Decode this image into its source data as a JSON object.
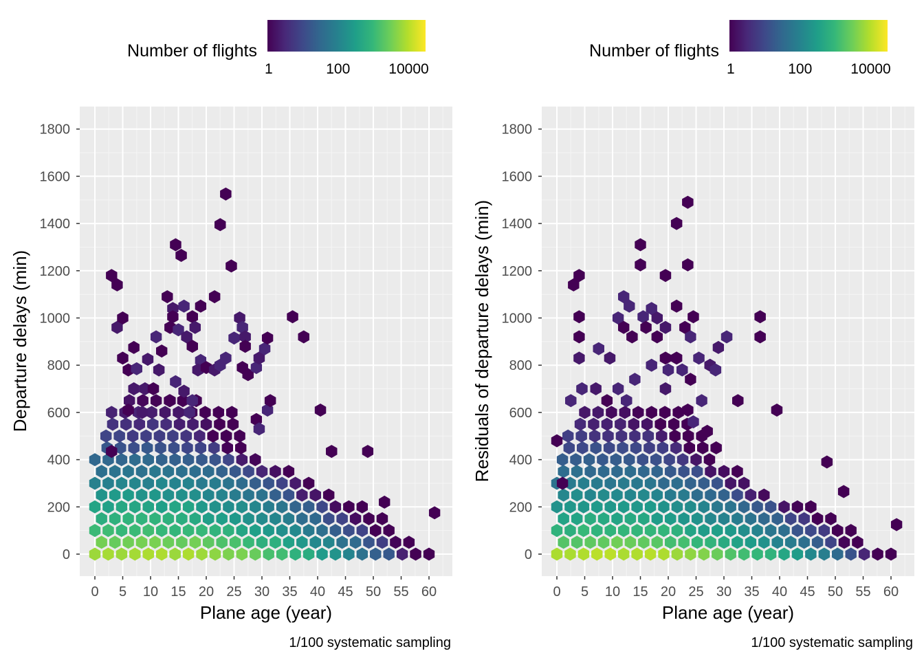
{
  "colors": {
    "panel_background": "#ebebeb",
    "grid_major": "#ffffff",
    "tick_text": "#4d4d4d",
    "viridis": [
      "#440154",
      "#482878",
      "#3e4989",
      "#31688e",
      "#26828e",
      "#1f9e89",
      "#35b779",
      "#6ece58",
      "#b5de2b",
      "#fde725"
    ]
  },
  "chart_data": [
    {
      "type": "heatmap",
      "subtype": "hexbin",
      "xlabel": "Plane age (year)",
      "ylabel": "Departure delays (min)",
      "caption": "1/100 systematic sampling",
      "legend": {
        "title": "Number of flights",
        "position": "top",
        "scale": "log10",
        "ticks": [
          "1",
          "100",
          "10000"
        ],
        "range": [
          1,
          30000
        ]
      },
      "xlim": [
        -3,
        64
      ],
      "ylim": [
        -80,
        1890
      ],
      "xticks": [
        "0",
        "5",
        "10",
        "15",
        "20",
        "25",
        "30",
        "35",
        "40",
        "45",
        "50",
        "55",
        "60"
      ],
      "yticks": [
        "0",
        "200",
        "400",
        "600",
        "800",
        "1000",
        "1200",
        "1400",
        "1600",
        "1800"
      ],
      "grid": true,
      "outliers": [
        [
          3,
          1180
        ],
        [
          4,
          1140
        ],
        [
          5,
          1000
        ],
        [
          14.5,
          1310
        ],
        [
          15.5,
          1265
        ],
        [
          23.5,
          1525
        ],
        [
          22.5,
          1395
        ],
        [
          24.5,
          1220
        ],
        [
          21.5,
          1090
        ],
        [
          35.5,
          1005
        ],
        [
          37.5,
          920
        ],
        [
          31.5,
          650
        ],
        [
          40.5,
          610
        ],
        [
          42.5,
          435
        ],
        [
          49,
          435
        ],
        [
          52,
          220
        ],
        [
          61,
          175
        ],
        [
          3,
          435
        ]
      ],
      "scattered": [
        [
          4,
          960
        ],
        [
          7,
          875
        ],
        [
          5,
          830
        ],
        [
          6,
          780
        ],
        [
          7.5,
          785
        ],
        [
          9.5,
          825
        ],
        [
          9,
          700
        ],
        [
          11,
          920
        ],
        [
          12,
          860
        ],
        [
          11.5,
          780
        ],
        [
          13,
          1090
        ],
        [
          14,
          1040
        ],
        [
          14,
          1005
        ],
        [
          13.5,
          960
        ],
        [
          15,
          950
        ],
        [
          16,
          1050
        ],
        [
          17.5,
          1005
        ],
        [
          18,
          960
        ],
        [
          19,
          1050
        ],
        [
          16.5,
          920
        ],
        [
          17.5,
          880
        ],
        [
          19,
          820
        ],
        [
          18.5,
          780
        ],
        [
          20,
          790
        ],
        [
          21.5,
          780
        ],
        [
          22.5,
          800
        ],
        [
          23.5,
          830
        ],
        [
          26,
          1000
        ],
        [
          26.5,
          960
        ],
        [
          25,
          915
        ],
        [
          27,
          920
        ],
        [
          27,
          880
        ],
        [
          26.5,
          790
        ],
        [
          27.5,
          760
        ],
        [
          29,
          790
        ],
        [
          29.5,
          830
        ],
        [
          30.5,
          870
        ],
        [
          31,
          915
        ],
        [
          7,
          700
        ],
        [
          10.5,
          700
        ],
        [
          13.5,
          650
        ],
        [
          14.5,
          730
        ],
        [
          16,
          690
        ],
        [
          17.5,
          650
        ],
        [
          17,
          600
        ],
        [
          6,
          610
        ],
        [
          8.5,
          600
        ],
        [
          29,
          570
        ],
        [
          29.5,
          530
        ],
        [
          31,
          610
        ]
      ],
      "bands": [
        {
          "y": 0,
          "x": [
            0,
            60
          ],
          "peak": 10000
        },
        {
          "y": 50,
          "x": [
            0,
            58
          ],
          "peak": 4000
        },
        {
          "y": 100,
          "x": [
            0,
            55
          ],
          "peak": 1500
        },
        {
          "y": 150,
          "x": [
            0,
            52
          ],
          "peak": 800
        },
        {
          "y": 200,
          "x": [
            0,
            49
          ],
          "peak": 500
        },
        {
          "y": 250,
          "x": [
            0,
            42
          ],
          "peak": 300
        },
        {
          "y": 300,
          "x": [
            0,
            40
          ],
          "peak": 150
        },
        {
          "y": 350,
          "x": [
            0,
            35
          ],
          "peak": 80
        },
        {
          "y": 400,
          "x": [
            0,
            31
          ],
          "peak": 40
        },
        {
          "y": 450,
          "x": [
            1,
            28
          ],
          "peak": 20
        },
        {
          "y": 500,
          "x": [
            2,
            27
          ],
          "peak": 10
        },
        {
          "y": 550,
          "x": [
            2,
            26
          ],
          "peak": 6
        },
        {
          "y": 600,
          "x": [
            3,
            26
          ],
          "peak": 3
        },
        {
          "y": 650,
          "x": [
            5,
            19
          ],
          "peak": 2
        }
      ]
    },
    {
      "type": "heatmap",
      "subtype": "hexbin",
      "xlabel": "Plane age (year)",
      "ylabel": "Residuals of departure delays (min)",
      "caption": "1/100 systematic sampling",
      "legend": {
        "title": "Number of flights",
        "position": "top",
        "scale": "log10",
        "ticks": [
          "1",
          "100",
          "10000"
        ],
        "range": [
          1,
          30000
        ]
      },
      "xlim": [
        -3,
        64
      ],
      "ylim": [
        -80,
        1890
      ],
      "xticks": [
        "0",
        "5",
        "10",
        "15",
        "20",
        "25",
        "30",
        "35",
        "40",
        "45",
        "50",
        "55",
        "60"
      ],
      "yticks": [
        "0",
        "200",
        "400",
        "600",
        "800",
        "1000",
        "1200",
        "1400",
        "1600",
        "1800"
      ],
      "grid": true,
      "outliers": [
        [
          3,
          1140
        ],
        [
          4,
          1180
        ],
        [
          4,
          1005
        ],
        [
          15,
          1310
        ],
        [
          15,
          1225
        ],
        [
          23.5,
          1490
        ],
        [
          21.5,
          1400
        ],
        [
          23.5,
          1225
        ],
        [
          19.5,
          1180
        ],
        [
          21.5,
          1050
        ],
        [
          36.5,
          1005
        ],
        [
          36.5,
          920
        ],
        [
          39.5,
          610
        ],
        [
          32.5,
          650
        ],
        [
          48.5,
          390
        ],
        [
          51.5,
          265
        ],
        [
          61,
          125
        ],
        [
          0,
          480
        ],
        [
          1,
          300
        ]
      ],
      "scattered": [
        [
          4,
          920
        ],
        [
          4,
          830
        ],
        [
          7.5,
          870
        ],
        [
          9.5,
          830
        ],
        [
          12,
          1090
        ],
        [
          13,
          1050
        ],
        [
          11,
          1000
        ],
        [
          12,
          960
        ],
        [
          13.5,
          920
        ],
        [
          15.5,
          1005
        ],
        [
          16,
          960
        ],
        [
          17,
          1040
        ],
        [
          18,
          1000
        ],
        [
          19.5,
          960
        ],
        [
          18,
          920
        ],
        [
          19.5,
          830
        ],
        [
          17,
          800
        ],
        [
          20,
          780
        ],
        [
          21.5,
          830
        ],
        [
          23,
          960
        ],
        [
          24.5,
          1005
        ],
        [
          24,
          920
        ],
        [
          25.5,
          830
        ],
        [
          22.5,
          780
        ],
        [
          24,
          740
        ],
        [
          27.5,
          800
        ],
        [
          28.5,
          780
        ],
        [
          29,
          875
        ],
        [
          30.5,
          920
        ],
        [
          7,
          700
        ],
        [
          9,
          650
        ],
        [
          11,
          700
        ],
        [
          12.5,
          650
        ],
        [
          14,
          740
        ],
        [
          2.5,
          650
        ],
        [
          4.5,
          700
        ],
        [
          19.5,
          700
        ],
        [
          23.5,
          610
        ],
        [
          26,
          650
        ],
        [
          24.5,
          560
        ],
        [
          27,
          520
        ]
      ],
      "bands": [
        {
          "y": 0,
          "x": [
            0,
            60
          ],
          "peak": 12000
        },
        {
          "y": 50,
          "x": [
            0,
            56
          ],
          "peak": 3000
        },
        {
          "y": 100,
          "x": [
            0,
            55
          ],
          "peak": 1200
        },
        {
          "y": 150,
          "x": [
            0,
            51
          ],
          "peak": 600
        },
        {
          "y": 200,
          "x": [
            0,
            46
          ],
          "peak": 350
        },
        {
          "y": 250,
          "x": [
            0,
            39
          ],
          "peak": 180
        },
        {
          "y": 300,
          "x": [
            0,
            35
          ],
          "peak": 100
        },
        {
          "y": 350,
          "x": [
            0,
            33
          ],
          "peak": 50
        },
        {
          "y": 400,
          "x": [
            1,
            29
          ],
          "peak": 30
        },
        {
          "y": 450,
          "x": [
            1,
            29
          ],
          "peak": 15
        },
        {
          "y": 500,
          "x": [
            2,
            27
          ],
          "peak": 8
        },
        {
          "y": 550,
          "x": [
            3,
            24
          ],
          "peak": 4
        },
        {
          "y": 600,
          "x": [
            5,
            22
          ],
          "peak": 2
        }
      ]
    }
  ]
}
